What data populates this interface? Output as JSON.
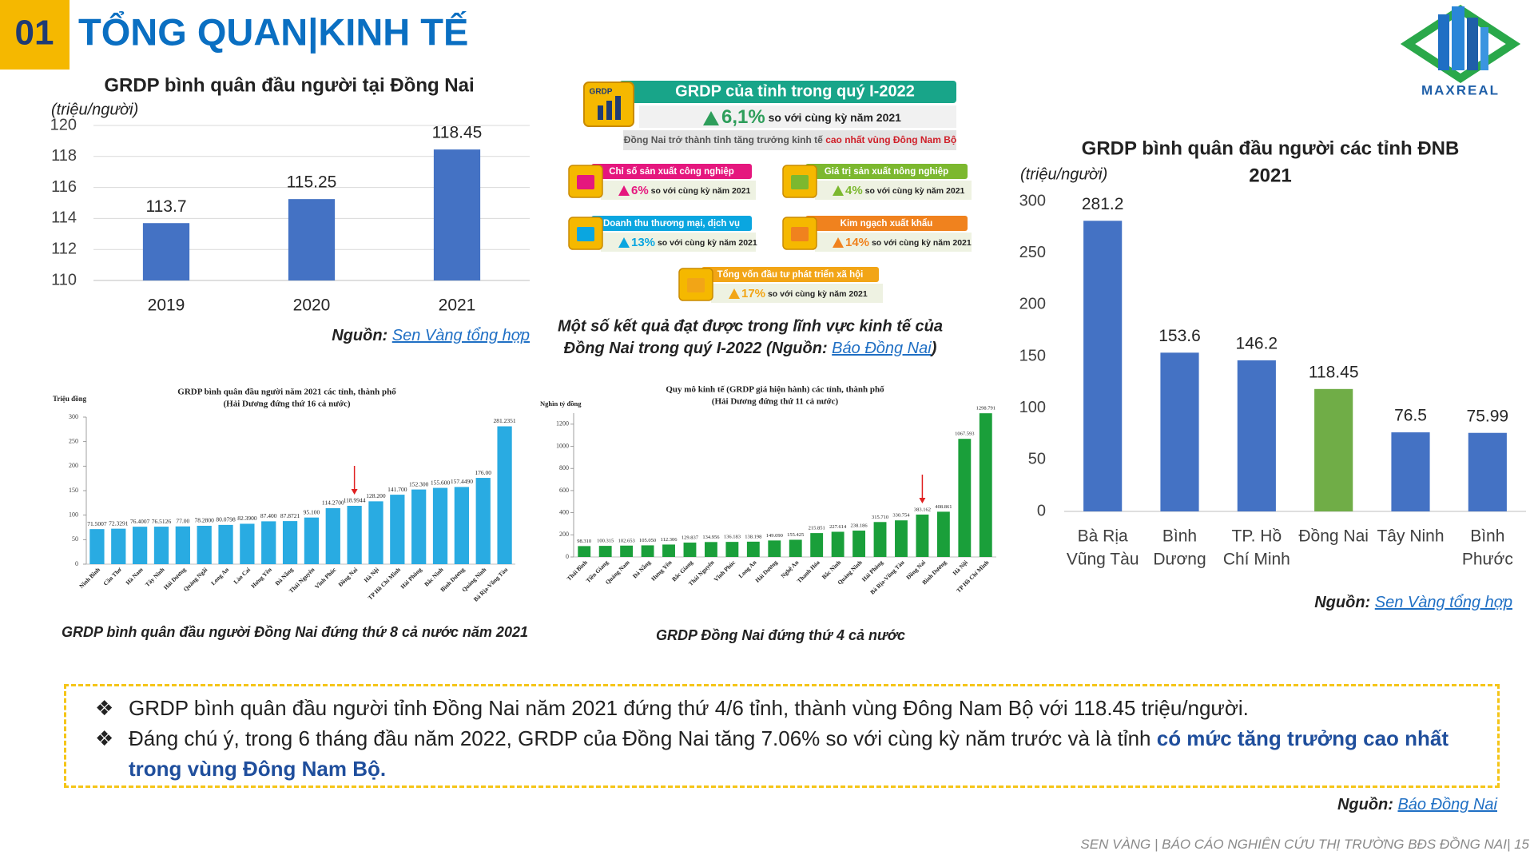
{
  "header": {
    "number": "01",
    "title": "TỔNG QUAN|KINH TẾ"
  },
  "logo": {
    "text": "MAXREAL"
  },
  "chart_data": [
    {
      "type": "bar",
      "title": [
        "GRDP bình quân đầu người tại Đồng Nai"
      ],
      "unit_label": "(triệu/người)",
      "categories": [
        "2019",
        "2020",
        "2021"
      ],
      "values": [
        113.7,
        115.25,
        118.45
      ],
      "color": "#4472c4",
      "ylim": [
        110,
        120
      ],
      "yticks": [
        110,
        112,
        114,
        116,
        118,
        120
      ],
      "grid": true,
      "source": {
        "label": "Nguồn: ",
        "link": "Sen Vàng tổng hợp"
      }
    },
    {
      "type": "bar",
      "title": [
        "GRDP bình quân đầu người các tỉnh ĐNB",
        "2021"
      ],
      "unit_label": "(triệu/người)",
      "categories": [
        [
          "Bà Rịa",
          "Vũng Tàu"
        ],
        [
          "Bình",
          "Dương"
        ],
        [
          "TP. Hồ",
          "Chí Minh"
        ],
        [
          "Đồng Nai"
        ],
        [
          "Tây Ninh"
        ],
        [
          "Bình",
          "Phước"
        ]
      ],
      "values": [
        281.2,
        153.6,
        146.2,
        118.45,
        76.5,
        75.99
      ],
      "colors": [
        "#4472c4",
        "#4472c4",
        "#4472c4",
        "#70ad47",
        "#4472c4",
        "#4472c4"
      ],
      "ylim": [
        0,
        300
      ],
      "yticks": [
        0,
        50,
        100,
        150,
        200,
        250,
        300
      ],
      "grid": false,
      "source": {
        "label": "Nguồn: ",
        "link": "Sen Vàng tổng hợp"
      }
    },
    {
      "type": "bar",
      "title": [
        "GRDP bình quân đầu người năm 2021 các tỉnh, thành phố",
        "(Hải Dương đứng thứ 16 cả nước)"
      ],
      "unit_label": "Triệu đồng",
      "categories": [
        "Ninh Bình",
        "Cần Thơ",
        "Hà Nam",
        "Tây Ninh",
        "Hải Dương",
        "Quảng Ngãi",
        "Long An",
        "Lào Cai",
        "Hưng Yên",
        "Đà Nẵng",
        "Thái Nguyên",
        "Vĩnh Phúc",
        "Đồng Nai",
        "Hà Nội",
        "TP Hồ Chí Minh",
        "Hải Phòng",
        "Bắc Ninh",
        "Bình Dương",
        "Quảng Ninh",
        "Bà Rịa-Vũng Tàu"
      ],
      "values": [
        71.5007,
        72.3291,
        76.4007,
        76.5126,
        77,
        78.28,
        80.0798,
        82.39,
        87.4,
        87.8721,
        95.1,
        114.27,
        118.9944,
        128.2,
        141.7,
        152.3,
        155.6,
        157.449,
        176,
        281.2351
      ],
      "value_labels": [
        "71.5007",
        "72.3291",
        "76.4007",
        "76.5126",
        "77.00",
        "78.2800",
        "80.0798",
        "82.3900",
        "87.400",
        "87.8721",
        "95.100",
        "114.2700",
        "118.9944",
        "128.200",
        "141.700",
        "152.300",
        "155.600",
        "157.4490",
        "176.00",
        "281.2351"
      ],
      "color": "#29abe2",
      "ylim": [
        0,
        300
      ],
      "yticks": [
        0,
        50,
        100,
        150,
        200,
        250,
        300
      ],
      "grid": false,
      "arrow_at": 12,
      "caption": "GRDP bình quân đầu người Đồng Nai đứng thứ 8 cả nước năm 2021"
    },
    {
      "type": "bar",
      "title": [
        "Quy mô kinh tế (GRDP giá hiện hành) các tỉnh, thành phố",
        "(Hải Dương đứng thứ 11 cả nước)"
      ],
      "unit_label": "Nghìn tỷ đồng",
      "categories": [
        "Thái Bình",
        "Tiền Giang",
        "Quảng Nam",
        "Đà Nẵng",
        "Hưng Yên",
        "Bắc Giang",
        "Thái Nguyên",
        "Vĩnh Phúc",
        "Long An",
        "Hải Dương",
        "Nghệ An",
        "Thanh Hóa",
        "Bắc Ninh",
        "Quảng Ninh",
        "Hải Phòng",
        "Bà Rịa-Vũng Tàu",
        "Đồng Nai",
        "Bình Dương",
        "Hà Nội",
        "TP Hồ Chí Minh"
      ],
      "values": [
        98.31,
        100.315,
        102.653,
        105.05,
        112.306,
        129.837,
        134.956,
        136.183,
        138.198,
        149.09,
        155.425,
        215.851,
        227.614,
        238.186,
        315.71,
        330.754,
        383.162,
        408.861,
        1067.593,
        1298.791
      ],
      "value_labels": [
        "98.310",
        "100.315",
        "102.653",
        "105.050",
        "112.306",
        "129.837",
        "134.956",
        "136.183",
        "138.198",
        "149.090",
        "155.425",
        "215.851",
        "227.614",
        "238.186",
        "315.710",
        "330.754",
        "383.162",
        "408.861",
        "1067.593",
        "1298.791"
      ],
      "color": "#1a9f3a",
      "ylim": [
        0,
        1300
      ],
      "yticks": [
        0,
        200,
        400,
        600,
        800,
        1000,
        1200
      ],
      "grid": false,
      "arrow_at": 16,
      "caption": "GRDP Đồng Nai đứng thứ 4 cả nước"
    }
  ],
  "infographic": {
    "main": {
      "badge": "GRDP",
      "title": "GRDP của tỉnh trong quý I-2022",
      "growth": "6,1%",
      "growth_note": " so với cùng kỳ năm 2021",
      "note": "Đồng Nai trở thành tỉnh tăng trưởng kinh tế ",
      "note_highlight": "cao nhất vùng Đông Nam Bộ"
    },
    "items": [
      {
        "title": "Chỉ số sản xuất công nghiệp",
        "growth": "6%",
        "note": " so với cùng kỳ năm 2021"
      },
      {
        "title": "Giá trị sản xuất nông nghiệp",
        "growth": "4%",
        "note": " so với cùng kỳ năm 2021"
      },
      {
        "title": "Doanh thu thương mại, dịch vụ",
        "growth": "13%",
        "note": " so với cùng kỳ năm 2021"
      },
      {
        "title": "Kim ngạch xuất khẩu",
        "growth": "14%",
        "note": " so với cùng kỳ năm 2021"
      },
      {
        "title": "Tổng vốn đầu tư phát triển xã hội",
        "growth": "17%",
        "note": " so với cùng kỳ năm 2021"
      }
    ],
    "caption": {
      "line1": "Một số kết quả đạt được trong lĩnh vực kinh tế của",
      "line2": "Đồng Nai trong quý I-2022 (Nguồn: ",
      "link": "Báo Đồng Nai",
      "end": ")"
    }
  },
  "summary": {
    "bullets": [
      {
        "text": "GRDP bình quân đầu người tỉnh Đồng Nai năm 2021 đứng thứ 4/6 tỉnh, thành vùng Đông Nam Bộ với 118.45 triệu/người."
      },
      {
        "text": "Đáng chú ý, trong 6 tháng đầu năm 2022, GRDP của Đồng Nai tăng 7.06% so với cùng kỳ năm trước và là tỉnh ",
        "highlight": "có mức tăng trưởng cao nhất trong vùng Đông Nam Bộ."
      }
    ]
  },
  "source": {
    "label": "Nguồn: ",
    "link": "Báo Đồng Nai"
  },
  "footer": "SEN VÀNG | BÁO CÁO NGHIÊN CỨU THỊ TRƯỜNG BĐS ĐỒNG NAI| 15"
}
